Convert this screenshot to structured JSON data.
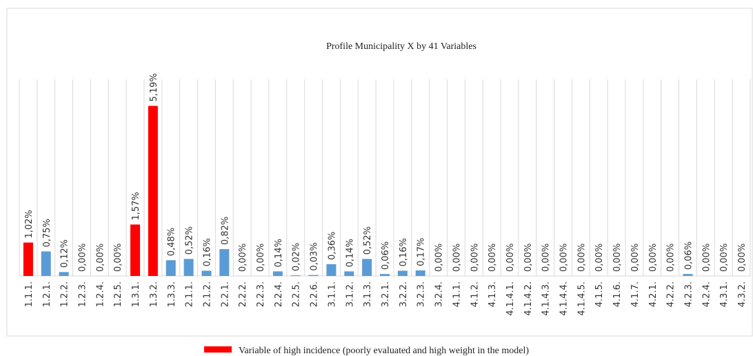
{
  "chart_data": {
    "type": "bar",
    "title": "Profile  Municipality  X   by  41 Variables",
    "categories": [
      "1.1.1.",
      "1.2.1.",
      "1.2.2.",
      "1.2.3.",
      "1.2.4.",
      "1.2.5.",
      "1.3.1.",
      "1.3.2.",
      "1.3.3.",
      "2.1.1.",
      "2.1.2.",
      "2.2.1.",
      "2.2.2.",
      "2.2.3.",
      "2.2.4.",
      "2.2.5.",
      "2.2.6.",
      "3.1.1.",
      "3.1.2.",
      "3.1.3.",
      "3.2.1.",
      "3.2.2.",
      "3.2.3.",
      "3.2.4.",
      "4.1.1.",
      "4.1.2.",
      "4.1.3.",
      "4.1.4.1.",
      "4.1.4.2.",
      "4.1.4.3.",
      "4.1.4.4.",
      "4.1.4.5.",
      "4.1.5.",
      "4.1.6.",
      "4.1.7.",
      "4.2.1.",
      "4.2.2.",
      "4.2.3.",
      "4.2.4.",
      "4.3.1.",
      "4.3.2."
    ],
    "values": [
      1.02,
      0.75,
      0.12,
      0,
      0,
      0,
      1.57,
      5.19,
      0.48,
      0.52,
      0.16,
      0.82,
      0,
      0,
      0.14,
      0.02,
      0.03,
      0.36,
      0.14,
      0.52,
      0.06,
      0.16,
      0.17,
      0,
      0,
      0,
      0,
      0,
      0,
      0,
      0,
      0,
      0,
      0,
      0,
      0,
      0,
      0.06,
      0,
      0,
      0
    ],
    "value_labels": [
      "1,02%",
      "0,75%",
      "0,12%",
      "0,00%",
      "0,00%",
      "0,00%",
      "1,57%",
      "5,19%",
      "0,48%",
      "0,52%",
      "0,16%",
      "0,82%",
      "0,00%",
      "0,00%",
      "0,14%",
      "0,02%",
      "0,03%",
      "0,36%",
      "0,14%",
      "0,52%",
      "0,06%",
      "0,16%",
      "0,17%",
      "0,00%",
      "0,00%",
      "0,00%",
      "0,00%",
      "0,00%",
      "0,00%",
      "0,00%",
      "0,00%",
      "0,00%",
      "0,00%",
      "0,00%",
      "0,00%",
      "0,00%",
      "0,00%",
      "0,06%",
      "0,00%",
      "0,00%",
      "0,00%"
    ],
    "colors": [
      "#ff0000",
      "#5b9bd5",
      "#5b9bd5",
      "#5b9bd5",
      "#5b9bd5",
      "#5b9bd5",
      "#ff0000",
      "#ff0000",
      "#5b9bd5",
      "#5b9bd5",
      "#5b9bd5",
      "#5b9bd5",
      "#5b9bd5",
      "#5b9bd5",
      "#5b9bd5",
      "#5b9bd5",
      "#5b9bd5",
      "#5b9bd5",
      "#5b9bd5",
      "#5b9bd5",
      "#5b9bd5",
      "#5b9bd5",
      "#5b9bd5",
      "#5b9bd5",
      "#5b9bd5",
      "#5b9bd5",
      "#5b9bd5",
      "#5b9bd5",
      "#5b9bd5",
      "#5b9bd5",
      "#5b9bd5",
      "#5b9bd5",
      "#5b9bd5",
      "#5b9bd5",
      "#5b9bd5",
      "#5b9bd5",
      "#5b9bd5",
      "#5b9bd5",
      "#5b9bd5",
      "#5b9bd5",
      "#5b9bd5"
    ],
    "ylim": [
      0,
      6
    ],
    "legend": {
      "label": "Variable of high incidence (poorly evaluated and high weight in the model)",
      "color": "#ff0000"
    }
  }
}
